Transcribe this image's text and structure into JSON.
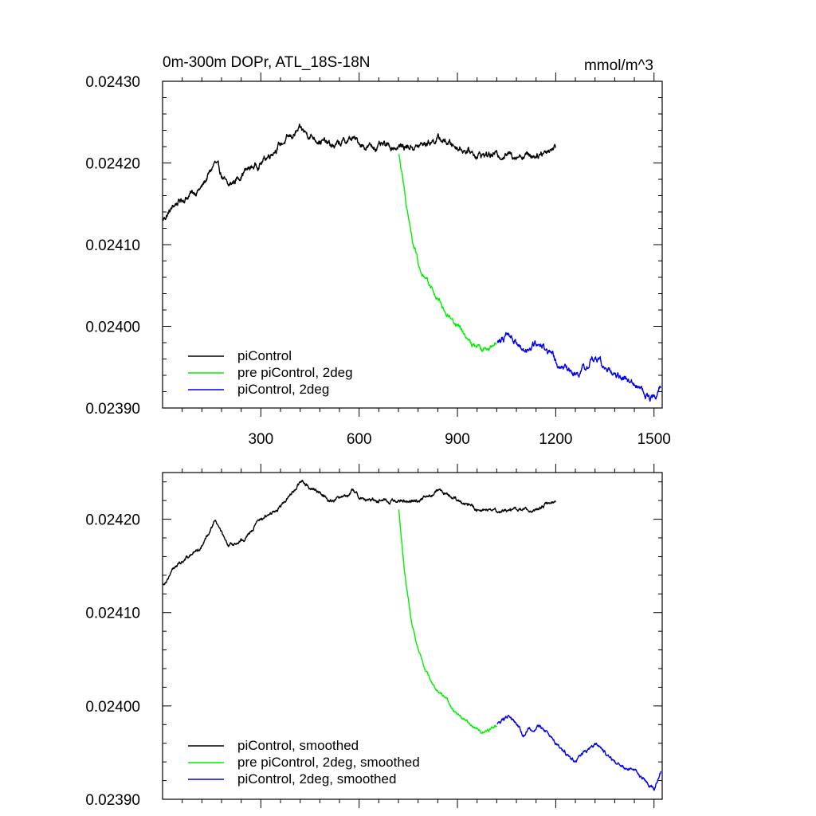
{
  "chart_data": [
    {
      "type": "line",
      "title": "0m-300m DOPr, ATL_18S-18N",
      "units": "mmol/m^3",
      "xlim": [
        0,
        1525
      ],
      "ylim": [
        0.0239,
        0.0243
      ],
      "xticks": [
        300,
        600,
        900,
        1200,
        1500
      ],
      "xtick_labels": [
        "300",
        "600",
        "900",
        "1200",
        "1500"
      ],
      "yticks": [
        0.0239,
        0.024,
        0.0241,
        0.0242,
        0.0243
      ],
      "ytick_labels": [
        "0.02390",
        "0.02400",
        "0.02410",
        "0.02420",
        "0.02430"
      ],
      "legend": {
        "position": "bottom-left",
        "entries": [
          "piControl",
          "pre piControl, 2deg",
          "piControl, 2deg"
        ]
      },
      "series": [
        {
          "name": "piControl",
          "color": "#000000",
          "noise": 5e-06,
          "x": [
            1,
            40,
            80,
            120,
            160,
            200,
            250,
            300,
            350,
            420,
            470,
            520,
            580,
            620,
            700,
            780,
            840,
            900,
            960,
            1020,
            1080,
            1140,
            1200
          ],
          "y": [
            0.02413,
            0.02415,
            0.02416,
            0.02417,
            0.0242,
            0.02417,
            0.02419,
            0.0242,
            0.02422,
            0.02424,
            0.02423,
            0.02422,
            0.02423,
            0.02422,
            0.02422,
            0.02422,
            0.02423,
            0.02422,
            0.02421,
            0.02421,
            0.02421,
            0.02421,
            0.02422
          ]
        },
        {
          "name": "pre piControl, 2deg",
          "color": "#00ee00",
          "noise": 4e-06,
          "x": [
            721,
            740,
            760,
            780,
            800,
            830,
            860,
            900,
            940,
            980,
            1020
          ],
          "y": [
            0.02421,
            0.02416,
            0.02411,
            0.02408,
            0.02406,
            0.02404,
            0.02402,
            0.024,
            0.02398,
            0.02397,
            0.02398
          ]
        },
        {
          "name": "piControl, 2deg",
          "color": "#0000ee",
          "noise": 5e-06,
          "x": [
            1021,
            1060,
            1100,
            1150,
            1200,
            1260,
            1320,
            1380,
            1440,
            1500,
            1521
          ],
          "y": [
            0.02398,
            0.02399,
            0.02397,
            0.02398,
            0.02396,
            0.02394,
            0.02396,
            0.02394,
            0.02393,
            0.02391,
            0.02393
          ]
        }
      ]
    },
    {
      "type": "line",
      "title": "",
      "xlim": [
        0,
        1525
      ],
      "ylim": [
        0.0239,
        0.02425
      ],
      "xticks": [
        300,
        600,
        900,
        1200,
        1500
      ],
      "yticks": [
        0.0239,
        0.024,
        0.0241,
        0.0242
      ],
      "ytick_labels": [
        "0.02390",
        "0.02400",
        "0.02410",
        "0.02420"
      ],
      "legend": {
        "position": "bottom-left",
        "entries": [
          "piControl, smoothed",
          "pre piControl, 2deg, smoothed",
          "piControl, 2deg, smoothed"
        ]
      },
      "series": [
        {
          "name": "piControl, smoothed",
          "color": "#000000",
          "noise": 2.5e-06,
          "x": [
            1,
            40,
            80,
            120,
            160,
            200,
            250,
            300,
            350,
            420,
            470,
            520,
            580,
            620,
            700,
            780,
            840,
            900,
            960,
            1020,
            1080,
            1140,
            1200
          ],
          "y": [
            0.02413,
            0.02415,
            0.02416,
            0.02417,
            0.0242,
            0.02417,
            0.02418,
            0.0242,
            0.02421,
            0.02424,
            0.02423,
            0.02422,
            0.02423,
            0.02422,
            0.02422,
            0.02422,
            0.02423,
            0.02422,
            0.02421,
            0.02421,
            0.02421,
            0.02421,
            0.02422
          ]
        },
        {
          "name": "pre piControl, 2deg, smoothed",
          "color": "#00ee00",
          "noise": 2e-06,
          "x": [
            721,
            740,
            760,
            780,
            800,
            830,
            860,
            900,
            940,
            980,
            1020
          ],
          "y": [
            0.02421,
            0.02414,
            0.02409,
            0.02406,
            0.02404,
            0.02402,
            0.02401,
            0.02399,
            0.02398,
            0.02397,
            0.02398
          ]
        },
        {
          "name": "piControl, 2deg, smoothed",
          "color": "#0000ee",
          "noise": 2.5e-06,
          "x": [
            1021,
            1060,
            1100,
            1150,
            1200,
            1260,
            1320,
            1380,
            1440,
            1500,
            1521
          ],
          "y": [
            0.02398,
            0.02399,
            0.02397,
            0.02398,
            0.02396,
            0.02394,
            0.02396,
            0.02394,
            0.02393,
            0.02391,
            0.02393
          ]
        }
      ]
    }
  ]
}
